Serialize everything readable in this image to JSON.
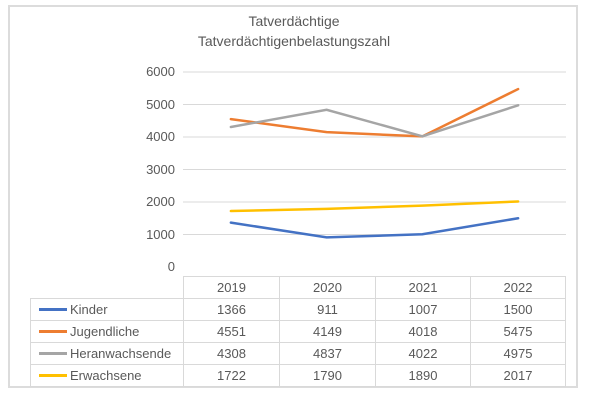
{
  "chart_data": {
    "type": "line",
    "title_lines": [
      "Tatverdächtige",
      "Tatverdächtigenbelastungszahl"
    ],
    "categories": [
      "2019",
      "2020",
      "2021",
      "2022"
    ],
    "series": [
      {
        "name": "Kinder",
        "values": [
          1366,
          911,
          1007,
          1500
        ],
        "color": "#4472C4"
      },
      {
        "name": "Jugendliche",
        "values": [
          4551,
          4149,
          4018,
          5475
        ],
        "color": "#ED7D31"
      },
      {
        "name": "Heranwachsende",
        "values": [
          4308,
          4837,
          4022,
          4975
        ],
        "color": "#A5A5A5"
      },
      {
        "name": "Erwachsene",
        "values": [
          1722,
          1790,
          1890,
          2017
        ],
        "color": "#FFC000"
      }
    ],
    "ylim": [
      0,
      6000
    ],
    "ytick_step": 1000,
    "xlabel": "",
    "ylabel": "",
    "grid": true,
    "legend_position": "data-table-left",
    "colors": {
      "text": "#595959",
      "gridline": "#d9d9d9",
      "table_border": "#d9d9d9",
      "frame_border": "#dcdcdc",
      "background": "#ffffff"
    }
  }
}
